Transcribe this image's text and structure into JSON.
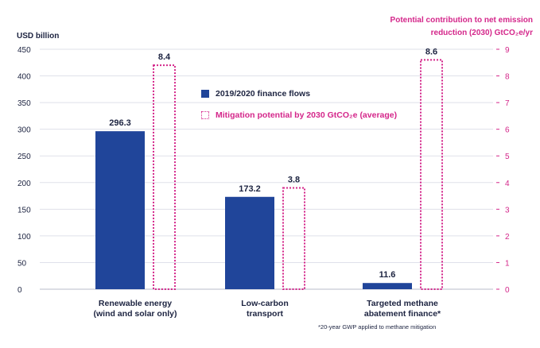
{
  "chart_data": {
    "type": "bar",
    "categories": [
      "Renewable energy\n(wind and solar only)",
      "Low-carbon\ntransport",
      "Targeted methane\nabatement finance*"
    ],
    "series": [
      {
        "name": "2019/2020 finance flows",
        "axis": "left",
        "style": "solid",
        "color": "#20459a",
        "values": [
          296.3,
          173.2,
          11.6
        ],
        "labels": [
          "296.3",
          "173.2",
          "11.6"
        ]
      },
      {
        "name": "Mitigation potential by 2030 GtCO₂e (average)",
        "axis": "right",
        "style": "dotted",
        "color": "#d4268a",
        "values": [
          8.4,
          3.8,
          8.6
        ],
        "labels": [
          "8.4",
          "3.8",
          "8.6"
        ]
      }
    ],
    "ylabel": "USD billion",
    "ylim": [
      0,
      450
    ],
    "yticks": [
      0,
      50,
      100,
      150,
      200,
      250,
      300,
      350,
      400,
      450
    ],
    "y2label": "Potential contribution to net emission reduction (2030) GtCO₂e/yr",
    "y2label_lines": [
      "Potential contribution to net emission",
      "reduction (2030) GtCO₂e/yr"
    ],
    "y2lim": [
      0,
      9
    ],
    "y2ticks": [
      0,
      1,
      2,
      3,
      4,
      5,
      6,
      7,
      8,
      9
    ],
    "grid": true,
    "legend": "center",
    "footnote": "*20-year GWP applied to methane mitigation"
  },
  "colors": {
    "primary": "#20459a",
    "accent": "#d4268a",
    "grid": "#dfe1ea",
    "text": "#1c2340"
  }
}
